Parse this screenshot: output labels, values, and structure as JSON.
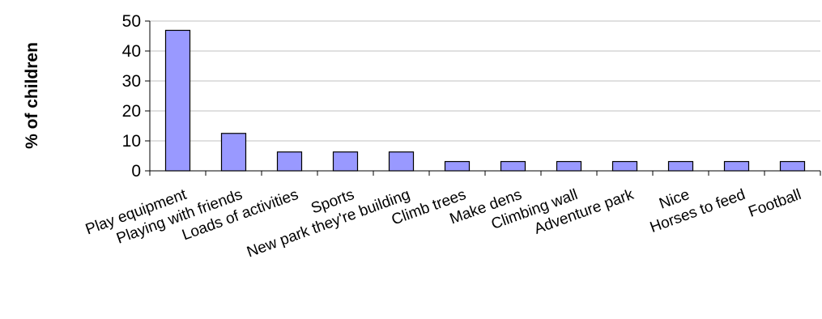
{
  "chart_data": {
    "type": "bar",
    "title": "",
    "xlabel": "",
    "ylabel": "% of children",
    "ylim": [
      0,
      50
    ],
    "yticks": [
      0,
      10,
      20,
      30,
      40,
      50
    ],
    "grid": true,
    "bar_color": "#9999ff",
    "categories": [
      "Play equipment",
      "Playing with friends",
      "Loads of activities",
      "Sports",
      "New park they're building",
      "Climb trees",
      "Make dens",
      "Climbing wall",
      "Adventure park",
      "Nice",
      "Horses to feed",
      "Football"
    ],
    "values": [
      46.9,
      12.5,
      6.3,
      6.3,
      6.3,
      3.1,
      3.1,
      3.1,
      3.1,
      3.1,
      3.1,
      3.1
    ]
  }
}
